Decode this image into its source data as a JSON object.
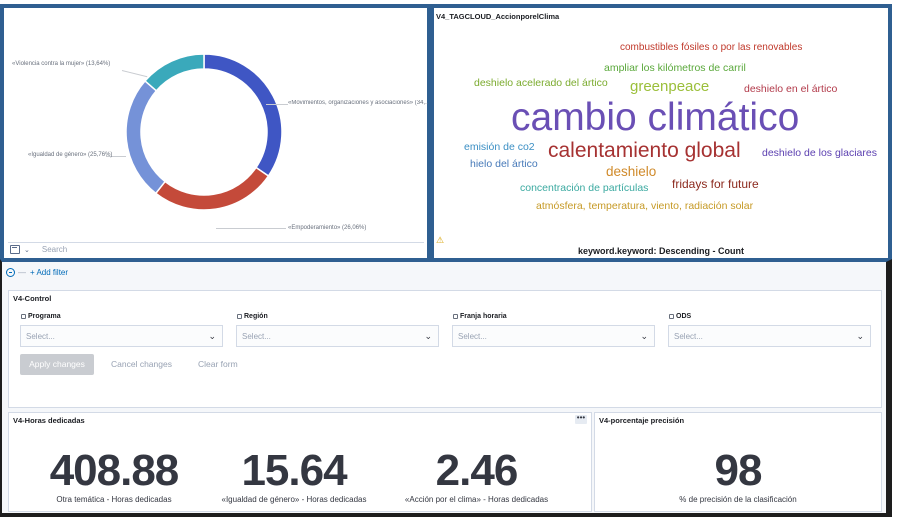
{
  "donut_panel": {
    "search_placeholder": "Search",
    "labels": [
      "«Violencia contra la mujer» (13,64%)",
      "«Movimientos, organizaciones y asociaciones» (34,...",
      "«Igualdad de género» (25,76%)",
      "«Empoderamiento» (26,06%)"
    ],
    "colors": {
      "movimientos": "#3f56c4",
      "empoderamiento": "#c44a3a",
      "igualdad": "#7592d8",
      "violencia": "#3aa9bb"
    }
  },
  "chart_data": {
    "type": "pie",
    "donut": true,
    "categories": [
      "«Movimientos, organizaciones y asociaciones»",
      "«Empoderamiento»",
      "«Igualdad de género»",
      "«Violencia contra la mujer»"
    ],
    "values": [
      34.54,
      26.06,
      25.76,
      13.64
    ],
    "title": ""
  },
  "tagcloud_panel": {
    "title": "V4_TAGCLOUD_AccionporelClima",
    "footer": "keyword.keyword: Descending - Count",
    "tags": [
      {
        "text": "combustibles fósiles o por las renovables",
        "color": "#c0392b"
      },
      {
        "text": "ampliar los kilómetros de carril",
        "color": "#5aa83b"
      },
      {
        "text": "deshielo acelerado del ártico",
        "color": "#7bab2e"
      },
      {
        "text": "greenpeace",
        "color": "#9bbf3a"
      },
      {
        "text": "deshielo en el ártico",
        "color": "#b23a4a"
      },
      {
        "text": "cambio climático",
        "color": "#6a4fb5"
      },
      {
        "text": "emisión de co2",
        "color": "#3b8fc4"
      },
      {
        "text": "calentamiento global",
        "color": "#a63232"
      },
      {
        "text": "deshielo de los glaciares",
        "color": "#5b3fb0"
      },
      {
        "text": "hielo del ártico",
        "color": "#4679b8"
      },
      {
        "text": "deshielo",
        "color": "#d08a2a"
      },
      {
        "text": "concentración de partículas",
        "color": "#3aa9a0"
      },
      {
        "text": "fridays for future",
        "color": "#8c2a1e"
      },
      {
        "text": "atmósfera, temperatura, viento, radiación solar",
        "color": "#c69a26"
      }
    ]
  },
  "filter_bar": {
    "add_filter": "+ Add filter",
    "dash": "—"
  },
  "control_panel": {
    "title": "V4-Control",
    "controls": [
      {
        "label": "Programa",
        "placeholder": "Select..."
      },
      {
        "label": "Región",
        "placeholder": "Select..."
      },
      {
        "label": "Franja horaria",
        "placeholder": "Select..."
      },
      {
        "label": "ODS",
        "placeholder": "Select..."
      }
    ],
    "apply": "Apply changes",
    "cancel": "Cancel changes",
    "clear": "Clear form"
  },
  "horas_panel": {
    "title": "V4-Horas dedicadas",
    "menu": "•••",
    "metrics": [
      {
        "value": "408.88",
        "label": "Otra temática - Horas dedicadas"
      },
      {
        "value": "15.64",
        "label": "«Igualdad de género» - Horas dedicadas"
      },
      {
        "value": "2.46",
        "label": "«Acción por el clima» - Horas dedicadas"
      }
    ]
  },
  "precision_panel": {
    "title": "V4-porcentaje precisión",
    "value": "98",
    "label": "% de precisión de la clasificación"
  }
}
